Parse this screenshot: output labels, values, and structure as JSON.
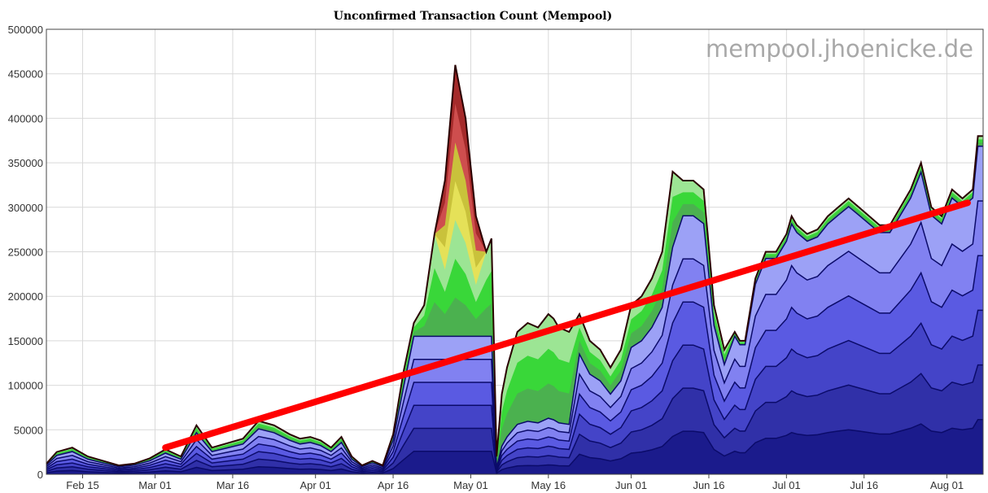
{
  "chart_data": {
    "type": "area",
    "title": "Unconfirmed Transaction Count (Mempool)",
    "watermark": "mempool.jhoenicke.de",
    "xlabel": "",
    "ylabel": "",
    "ylim": [
      0,
      500000
    ],
    "y_ticks": [
      0,
      50000,
      100000,
      150000,
      200000,
      250000,
      300000,
      350000,
      400000,
      450000,
      500000
    ],
    "y_tick_labels": [
      "0",
      "50000",
      "100000",
      "150000",
      "200000",
      "250000",
      "300000",
      "350000",
      "400000",
      "450000",
      "500000"
    ],
    "x_unit": "days since Feb 01",
    "xlim": [
      7,
      188
    ],
    "x_ticks": [
      14,
      28,
      43,
      59,
      74,
      89,
      104,
      120,
      135,
      150,
      165,
      181
    ],
    "x_tick_labels": [
      "Feb 15",
      "Mar 01",
      "Mar 16",
      "Apr 01",
      "Apr 16",
      "May 01",
      "May 16",
      "Jun 01",
      "Jun 16",
      "Jul 01",
      "Jul 16",
      "Aug 01"
    ],
    "grid": true,
    "legend": "none",
    "series": [
      {
        "color": "#000000",
        "x": [
          7,
          9,
          12,
          15,
          18,
          21,
          24,
          27,
          30,
          33,
          36,
          39,
          42,
          45,
          48,
          51,
          54,
          56,
          58,
          60,
          62,
          64,
          66,
          68,
          70,
          72,
          74,
          76,
          78,
          80,
          82,
          84,
          86,
          88,
          90,
          92,
          93,
          94,
          95,
          96,
          97,
          98,
          100,
          102,
          104,
          105,
          106,
          108,
          110,
          112,
          114,
          116,
          118,
          120,
          122,
          124,
          126,
          128,
          130,
          132,
          134,
          136,
          138,
          140,
          141,
          142,
          144,
          146,
          148,
          150,
          151,
          152,
          154,
          156,
          158,
          160,
          162,
          164,
          166,
          168,
          170,
          172,
          174,
          176,
          178,
          180,
          182,
          184,
          186,
          187,
          188
        ],
        "total": [
          12000,
          25000,
          30000,
          20000,
          15000,
          10000,
          12000,
          18000,
          28000,
          20000,
          55000,
          30000,
          35000,
          40000,
          60000,
          55000,
          45000,
          40000,
          42000,
          38000,
          30000,
          42000,
          20000,
          10000,
          15000,
          10000,
          45000,
          115000,
          170000,
          190000,
          270000,
          330000,
          460000,
          400000,
          290000,
          250000,
          265000,
          20000,
          90000,
          120000,
          140000,
          160000,
          170000,
          165000,
          180000,
          175000,
          165000,
          160000,
          180000,
          150000,
          140000,
          120000,
          140000,
          190000,
          200000,
          220000,
          250000,
          340000,
          330000,
          330000,
          320000,
          190000,
          140000,
          160000,
          150000,
          150000,
          220000,
          250000,
          250000,
          270000,
          290000,
          280000,
          270000,
          275000,
          290000,
          300000,
          310000,
          300000,
          290000,
          280000,
          280000,
          300000,
          320000,
          350000,
          300000,
          290000,
          320000,
          310000,
          320000,
          380000,
          380000
        ]
      }
    ],
    "fee_bands": {
      "colors": [
        "#1a1a8a",
        "#2f2fa6",
        "#4343c6",
        "#5757e0",
        "#8080f0",
        "#a0a0ff",
        "#4caf50",
        "#34d634",
        "#98e598",
        "#e7e35a",
        "#c8c83a",
        "#d05050",
        "#a02020"
      ],
      "annotation_trend": {
        "color": "#ff0000",
        "x": [
          30,
          185
        ],
        "y": [
          30000,
          305000
        ]
      }
    }
  }
}
